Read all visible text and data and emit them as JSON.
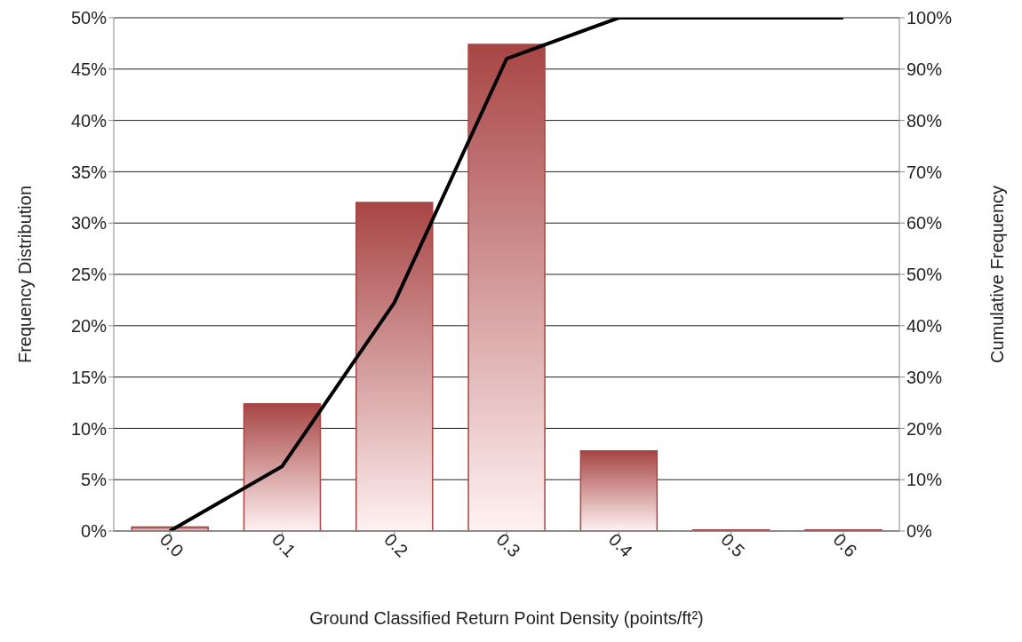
{
  "chart_data": {
    "type": "bar",
    "xlabel": "Ground Classified Return Point Density (points/ft²)",
    "ylabel": "Frequency Distribution",
    "y2label": "Cumulative Frequency",
    "categories": [
      "0.0",
      "0.1",
      "0.2",
      "0.3",
      "0.4",
      "0.5",
      "0.6"
    ],
    "series": [
      {
        "color": "#a84545",
        "values": [
          0.4,
          12.4,
          32.0,
          47.4,
          7.8,
          0.1,
          0.1
        ]
      },
      {
        "type": "line",
        "axis": "y2",
        "color": "#000000",
        "values": [
          0,
          12.6,
          44.5,
          92,
          100,
          100,
          100
        ]
      }
    ],
    "ylim": [
      0,
      50
    ],
    "yticks": [
      {
        "value": 0,
        "label": "0%"
      },
      {
        "value": 5,
        "label": "5%"
      },
      {
        "value": 10,
        "label": "10%"
      },
      {
        "value": 15,
        "label": "15%"
      },
      {
        "value": 20,
        "label": "20%"
      },
      {
        "value": 25,
        "label": "25%"
      },
      {
        "value": 30,
        "label": "30%"
      },
      {
        "value": 35,
        "label": "35%"
      },
      {
        "value": 40,
        "label": "40%"
      },
      {
        "value": 45,
        "label": "45%"
      },
      {
        "value": 50,
        "label": "50%"
      }
    ],
    "y2lim": [
      0,
      100
    ],
    "y2ticks": [
      {
        "value": 0,
        "label": "0%"
      },
      {
        "value": 10,
        "label": "10%"
      },
      {
        "value": 20,
        "label": "20%"
      },
      {
        "value": 30,
        "label": "30%"
      },
      {
        "value": 40,
        "label": "40%"
      },
      {
        "value": 50,
        "label": "50%"
      },
      {
        "value": 60,
        "label": "60%"
      },
      {
        "value": 70,
        "label": "70%"
      },
      {
        "value": 80,
        "label": "80%"
      },
      {
        "value": 90,
        "label": "90%"
      },
      {
        "value": 100,
        "label": "100%"
      }
    ],
    "grid": "y",
    "marker": "none",
    "line_style": "solid"
  }
}
